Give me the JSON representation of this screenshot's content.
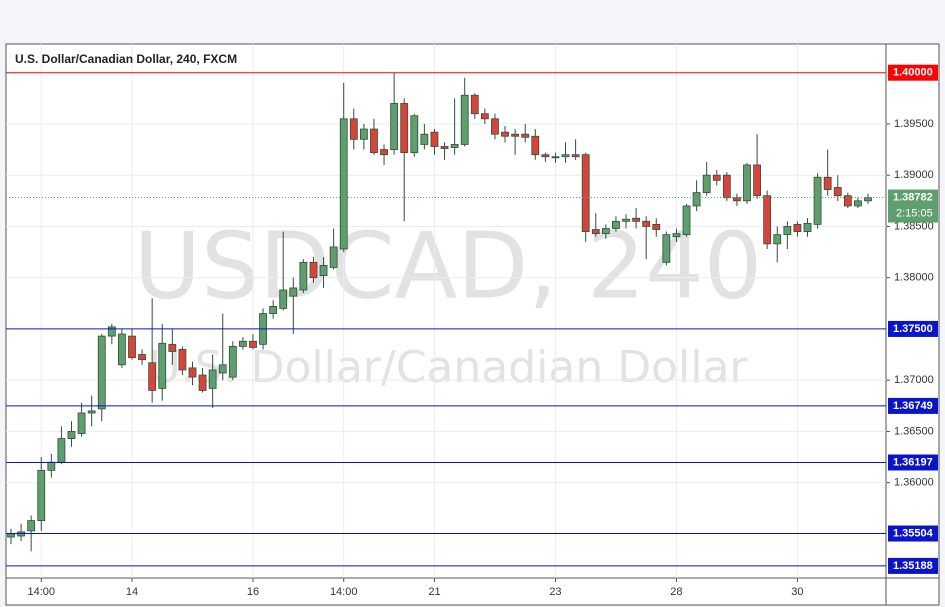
{
  "chart_data": {
    "type": "candlestick",
    "title": "U.S. Dollar/Canadian Dollar, 240, FXCM",
    "watermark_symbol": "USDCAD, 240",
    "watermark_name": "U.S. Dollar/Canadian Dollar",
    "categories": [
      null,
      null,
      null,
      "14:00",
      null,
      null,
      null,
      null,
      null,
      null,
      null,
      null,
      "14",
      null,
      null,
      null,
      null,
      null,
      null,
      null,
      null,
      null,
      null,
      null,
      "16",
      null,
      null,
      null,
      null,
      null,
      null,
      null,
      null,
      "14:00",
      null,
      null,
      null,
      null,
      null,
      null,
      null,
      null,
      "21",
      null,
      null,
      null,
      null,
      null,
      null,
      null,
      null,
      null,
      null,
      null,
      "23",
      null,
      null,
      null,
      null,
      null,
      null,
      null,
      null,
      null,
      null,
      null,
      "28",
      null,
      null,
      null,
      null,
      null,
      null,
      null,
      null,
      null,
      null,
      null,
      "30",
      null,
      null,
      null,
      null,
      null,
      null,
      null
    ],
    "series": [
      {
        "up_color": "#5f9e6e",
        "down_color": "#d9443a",
        "border_color": "#2f4f3a",
        "open": [
          1.3547,
          1.3548,
          1.3553,
          1.3563,
          1.3612,
          1.362,
          1.3643,
          1.3648,
          1.3668,
          1.3672,
          1.3743,
          1.3715,
          1.3743,
          1.3725,
          1.3717,
          1.3692,
          1.3735,
          1.373,
          1.3712,
          1.3705,
          1.3692,
          1.3707,
          1.3703,
          1.3733,
          1.3738,
          1.3735,
          1.3765,
          1.377,
          1.3782,
          1.3788,
          1.3815,
          1.3802,
          1.381,
          1.3828,
          1.3955,
          1.3935,
          1.3945,
          1.3925,
          1.3925,
          1.397,
          1.3922,
          1.393,
          1.3942,
          1.3928,
          1.3927,
          1.393,
          1.3978,
          1.396,
          1.3955,
          1.3942,
          1.394,
          1.394,
          1.3938,
          1.392,
          1.3918,
          1.3918,
          1.392,
          1.392,
          1.3847,
          1.3843,
          1.3848,
          1.3855,
          1.3858,
          1.3855,
          1.3852,
          1.3815,
          1.384,
          1.3842,
          1.387,
          1.3883,
          1.39,
          1.39,
          1.3878,
          1.3875,
          1.391,
          1.388,
          1.3833,
          1.3842,
          1.3852,
          1.3845,
          1.3852,
          1.3898,
          1.3888,
          1.388,
          1.387,
          1.3875
        ],
        "high": [
          1.3555,
          1.356,
          1.3568,
          1.3625,
          1.3628,
          1.3655,
          1.366,
          1.3678,
          1.3685,
          1.3745,
          1.3755,
          1.375,
          1.375,
          1.373,
          1.378,
          1.3755,
          1.375,
          1.3733,
          1.3718,
          1.3712,
          1.3725,
          1.3765,
          1.3738,
          1.3742,
          1.3745,
          1.377,
          1.3778,
          1.3845,
          1.38,
          1.3818,
          1.382,
          1.382,
          1.3848,
          1.399,
          1.3965,
          1.395,
          1.3955,
          1.393,
          1.4,
          1.3975,
          1.396,
          1.395,
          1.3945,
          1.3932,
          1.3975,
          1.3995,
          1.398,
          1.3965,
          1.396,
          1.3948,
          1.3945,
          1.395,
          1.3945,
          1.3922,
          1.3922,
          1.3932,
          1.3935,
          1.3922,
          1.3863,
          1.3852,
          1.386,
          1.3862,
          1.3868,
          1.386,
          1.3858,
          1.3845,
          1.3848,
          1.3872,
          1.3895,
          1.3913,
          1.3905,
          1.3903,
          1.3882,
          1.3912,
          1.394,
          1.3885,
          1.385,
          1.3855,
          1.3855,
          1.3858,
          1.3902,
          1.3925,
          1.39,
          1.3883,
          1.3878,
          1.3882
        ],
        "low": [
          1.354,
          1.3543,
          1.3533,
          1.3553,
          1.3605,
          1.3618,
          1.3635,
          1.3645,
          1.3655,
          1.366,
          1.3735,
          1.3712,
          1.372,
          1.3715,
          1.3678,
          1.368,
          1.3715,
          1.3705,
          1.3695,
          1.3688,
          1.3673,
          1.37,
          1.37,
          1.373,
          1.373,
          1.373,
          1.376,
          1.3768,
          1.3745,
          1.3785,
          1.3795,
          1.379,
          1.3808,
          1.3825,
          1.3925,
          1.3925,
          1.392,
          1.391,
          1.392,
          1.3855,
          1.3918,
          1.3925,
          1.392,
          1.3915,
          1.392,
          1.3928,
          1.3955,
          1.395,
          1.3935,
          1.3932,
          1.392,
          1.3932,
          1.3915,
          1.3913,
          1.3912,
          1.3912,
          1.3915,
          1.3835,
          1.384,
          1.3838,
          1.3845,
          1.3848,
          1.3848,
          1.3818,
          1.384,
          1.3812,
          1.3835,
          1.384,
          1.3865,
          1.388,
          1.389,
          1.3875,
          1.387,
          1.3872,
          1.3877,
          1.3828,
          1.3815,
          1.3828,
          1.384,
          1.384,
          1.3848,
          1.388,
          1.3875,
          1.3868,
          1.3868,
          1.3872
        ],
        "close": [
          1.355,
          1.3552,
          1.3563,
          1.3612,
          1.362,
          1.3643,
          1.365,
          1.3668,
          1.367,
          1.3743,
          1.3752,
          1.3745,
          1.3722,
          1.372,
          1.369,
          1.3736,
          1.3728,
          1.371,
          1.3703,
          1.369,
          1.371,
          1.3715,
          1.3733,
          1.3738,
          1.3732,
          1.3765,
          1.3772,
          1.3788,
          1.379,
          1.3815,
          1.38,
          1.3812,
          1.383,
          1.3955,
          1.3935,
          1.3945,
          1.3922,
          1.392,
          1.397,
          1.3922,
          1.3958,
          1.394,
          1.3928,
          1.3926,
          1.393,
          1.3978,
          1.396,
          1.3955,
          1.394,
          1.3938,
          1.3938,
          1.3937,
          1.392,
          1.3918,
          1.3917,
          1.392,
          1.3918,
          1.3845,
          1.3843,
          1.3848,
          1.3855,
          1.3857,
          1.3855,
          1.385,
          1.3847,
          1.3842,
          1.3843,
          1.387,
          1.3883,
          1.39,
          1.3895,
          1.3878,
          1.3875,
          1.391,
          1.388,
          1.3833,
          1.3842,
          1.385,
          1.3845,
          1.3853,
          1.3898,
          1.3886,
          1.388,
          1.387,
          1.3875,
          1.3878
        ]
      }
    ],
    "ylim": [
      1.3507,
      1.4028
    ],
    "yticks": [
      {
        "value": 1.36,
        "label": "1.36000"
      },
      {
        "value": 1.365,
        "label": "1.36500"
      },
      {
        "value": 1.37,
        "label": "1.37000"
      },
      {
        "value": 1.38,
        "label": "1.38000"
      },
      {
        "value": 1.385,
        "label": "1.38500"
      },
      {
        "value": 1.39,
        "label": "1.39000"
      },
      {
        "value": 1.395,
        "label": "1.39500"
      }
    ],
    "grid": true,
    "levels": [
      {
        "value": 1.4,
        "label": "1.40000",
        "color": "#ff0000"
      },
      {
        "value": 1.375,
        "label": "1.37500",
        "color": "#0a14c8"
      },
      {
        "value": 1.36749,
        "color": "#0a14c8"
      },
      {
        "value": 1.36197,
        "color": "#0a14c8"
      },
      {
        "value": 1.35504,
        "color": "#0a14c8"
      },
      {
        "value": 1.35188,
        "color": "#0a14c8"
      }
    ],
    "last_price": 1.38782,
    "last_price_color": "#5f9e6e",
    "countdown": "2:15:05"
  }
}
